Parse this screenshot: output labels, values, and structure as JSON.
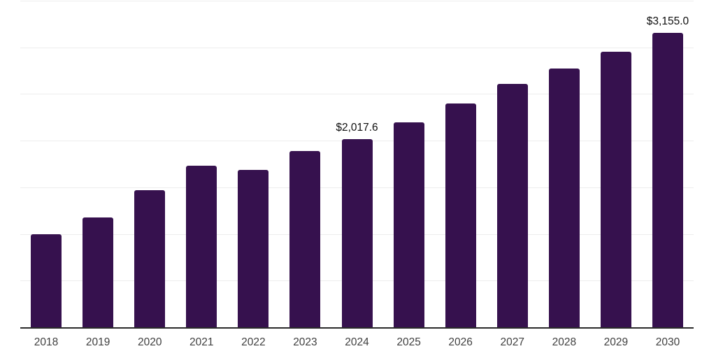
{
  "chart_data": {
    "type": "bar",
    "title": "",
    "xlabel": "",
    "ylabel": "",
    "legend": "none",
    "grid": true,
    "gridline_step": 500,
    "ylim": [
      0,
      3500
    ],
    "categories": [
      "2018",
      "2019",
      "2020",
      "2021",
      "2022",
      "2023",
      "2024",
      "2025",
      "2026",
      "2027",
      "2028",
      "2029",
      "2030"
    ],
    "values": [
      1000,
      1175,
      1470,
      1730,
      1685,
      1890,
      2017.6,
      2195,
      2395,
      2605,
      2770,
      2950,
      3155
    ],
    "point_labels": [
      "",
      "",
      "",
      "",
      "",
      "",
      "$2,017.6",
      "",
      "",
      "",
      "",
      "",
      "$3,155.0"
    ],
    "colors": {
      "bar": "#36114e",
      "gridline": "#ededed",
      "axis_line": "#2a2a2a",
      "tick_label": "#3f3f3f",
      "data_label": "#0e0e0e",
      "background": "#ffffff"
    }
  }
}
